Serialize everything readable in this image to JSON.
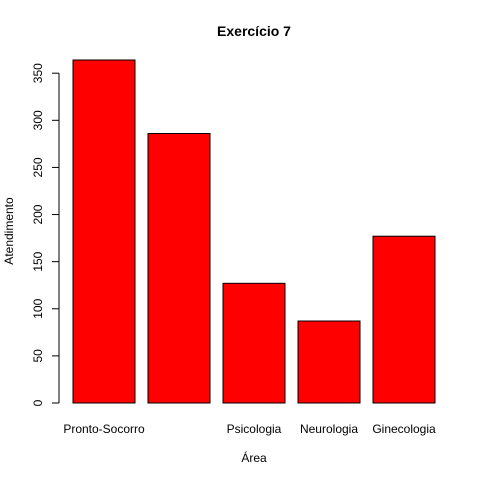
{
  "chart_data": {
    "type": "bar",
    "title": "Exercício 7",
    "xlabel": "Área",
    "ylabel": "Atendimento",
    "categories": [
      "Pronto-Socorro",
      "",
      "Psicologia",
      "Neurologia",
      "Ginecologia"
    ],
    "values": [
      364,
      286,
      127,
      87,
      177
    ],
    "ylim": [
      0,
      364
    ],
    "yticks": [
      0,
      50,
      100,
      150,
      200,
      250,
      300,
      350
    ],
    "bar_color": "#ff0000",
    "bar_border": "#000000",
    "grid": false,
    "legend": "none"
  }
}
